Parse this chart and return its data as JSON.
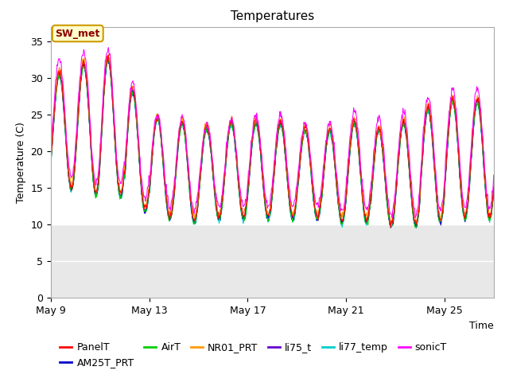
{
  "title": "Temperatures",
  "xlabel": "Time",
  "ylabel": "Temperature (C)",
  "ylim": [
    0,
    37
  ],
  "yticks": [
    0,
    5,
    10,
    15,
    20,
    25,
    30,
    35
  ],
  "series_colors": {
    "PanelT": "#ff0000",
    "AM25T_PRT": "#0000cc",
    "AirT": "#00cc00",
    "NR01_PRT": "#ff9900",
    "li75_t": "#6600cc",
    "li77_temp": "#00cccc",
    "sonicT": "#ff00ff"
  },
  "annotation_text": "SW_met",
  "band_lo": 10,
  "band_hi": 30,
  "plot_bg": "#ffffff",
  "shade_color": "#e8e8e8",
  "x_tick_labels": [
    "May 9",
    "May 13",
    "May 17",
    "May 21",
    "May 25"
  ],
  "x_tick_positions": [
    0,
    4,
    8,
    12,
    16
  ],
  "num_days": 18,
  "pts_per_day": 48,
  "title_fontsize": 11,
  "label_fontsize": 9,
  "tick_fontsize": 9,
  "legend_fontsize": 9,
  "figsize": [
    6.4,
    4.8
  ],
  "dpi": 100
}
